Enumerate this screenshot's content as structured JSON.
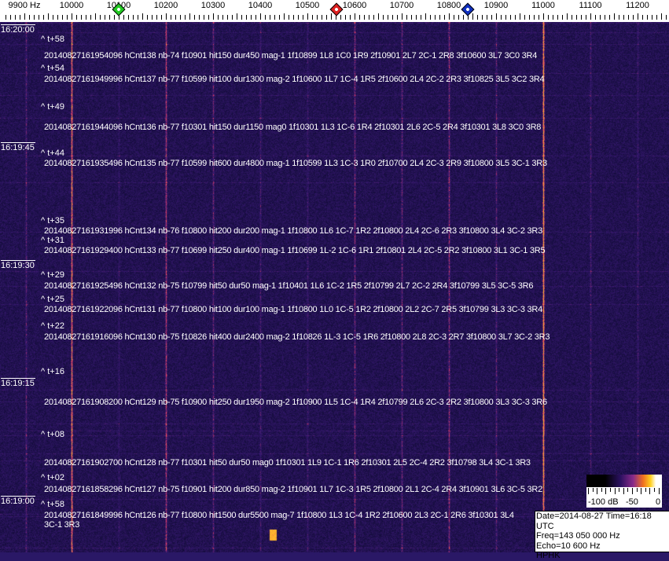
{
  "freq_axis": {
    "unit_label": "9900 Hz",
    "ticks": [
      "10000",
      "10100",
      "10200",
      "10300",
      "10400",
      "10500",
      "10600",
      "10700",
      "10800",
      "10900",
      "11000",
      "11100",
      "11200"
    ],
    "markers": [
      {
        "name": "green-marker",
        "color": "#22cc22",
        "freq_hz": 10100
      },
      {
        "name": "red-marker",
        "color": "#dd2020",
        "freq_hz": 10562
      },
      {
        "name": "blue-marker",
        "color": "#1030c0",
        "freq_hz": 10840
      }
    ]
  },
  "time_labels": [
    "16:20:00",
    "16:19:45",
    "16:19:30",
    "16:19:15",
    "16:19:00"
  ],
  "events": [
    {
      "rel": "^ t+58",
      "text": "20140827161954096 hCnt138 nb-74 f10901 hit150 dur450 mag-1 1f10899 1L8 1C0 1R9 2f10901 2L7 2C-1 2R8 3f10600 3L7 3C0 3R4"
    },
    {
      "rel": "^ t+54",
      "text": "20140827161949996 hCnt137 nb-77 f10599 hit100 dur1300 mag-2 1f10600 1L7 1C-4 1R5 2f10600 2L4 2C-2 2R3 3f10825 3L5 3C2 3R4"
    },
    {
      "rel": "^ t+49",
      "text": "20140827161944096 hCnt136 nb-77 f10301 hit150 dur1150 mag0 1f10301 1L3 1C-6 1R4 2f10301 2L6 2C-5 2R4 3f10301 3L8 3C0 3R8"
    },
    {
      "rel": "^ t+44",
      "text": "20140827161935496 hCnt135 nb-77 f10599 hit600 dur4800 mag-1 1f10599 1L3 1C-3 1R0 2f10700 2L4 2C-3 2R9 3f10800 3L5 3C-1 3R3"
    },
    {
      "rel": "^ t+35",
      "text": "20140827161931996 hCnt134 nb-76 f10800 hit200 dur200 mag-1 1f10800 1L6 1C-7 1R2 2f10800 2L4 2C-6 2R3 3f10800 3L4 3C-2 3R3"
    },
    {
      "rel": "^ t+31",
      "text": "20140827161929400 hCnt133 nb-77 f10699 hit250 dur400 mag-1 1f10699 1L-2 1C-6 1R1 2f10801 2L4 2C-5 2R2 3f10800 3L1 3C-1 3R5"
    },
    {
      "rel": "^ t+29",
      "text": "20140827161925496 hCnt132 nb-75 f10799 hit50 dur50 mag-1 1f10401 1L6 1C-2 1R5 2f10799 2L7 2C-2 2R4 3f10799 3L5 3C-5 3R6"
    },
    {
      "rel": "^ t+25",
      "text": "20140827161922096 hCnt131 nb-77 f10800 hit100 dur100 mag-1 1f10800 1L0 1C-5 1R2 2f10800 2L2 2C-7 2R5 3f10799 3L3 3C-3 3R4"
    },
    {
      "rel": "^ t+22",
      "text": "20140827161916096 hCnt130 nb-75 f10826 hit400 dur2400 mag-2 1f10826 1L-3 1C-5 1R6 2f10800 2L8 2C-3 2R7 3f10800 3L7 3C-2 3R3"
    },
    {
      "rel": "^ t+16",
      "text": "20140827161908200 hCnt129 nb-75 f10900 hit250 dur1950 mag-2 1f10900 1L5 1C-4 1R4 2f10799 2L6 2C-3 2R2 3f10800 3L3 3C-3 3R6"
    },
    {
      "rel": "^ t+08",
      "text": "20140827161902700 hCnt128 nb-77 f10301 hit50 dur50 mag0 1f10301 1L9 1C-1 1R6 2f10301 2L5 2C-4 2R2 3f10798 3L4 3C-1 3R3"
    },
    {
      "rel": "^ t+02",
      "text": "20140827161858296 hCnt127 nb-75 f10901 hit200 dur850 mag-2 1f10901 1L7 1C-3 1R5 2f10800 2L1 2C-4 2R4 3f10901 3L6 3C-5 3R2"
    },
    {
      "rel": "^ t+58",
      "text": "20140827161849996 hCnt126 nb-77 f10800 hit1500 dur5500 mag-7 1f10800 1L3 1C-4 1R2 2f10600 2L3 2C-1 2R6 3f10301 3L4 3C-1 3R3"
    }
  ],
  "colorbar": {
    "labels": [
      "-100 dB",
      "-50",
      "0"
    ]
  },
  "info": {
    "date_time": "Date=2014-08-27 Time=16:18 UTC",
    "freq": "Freq=143 050 000 Hz",
    "echo": "Echo=10 600 Hz",
    "station": "HPHK"
  },
  "colors": {
    "background": "#2a1866",
    "carrier": "#f08030"
  }
}
